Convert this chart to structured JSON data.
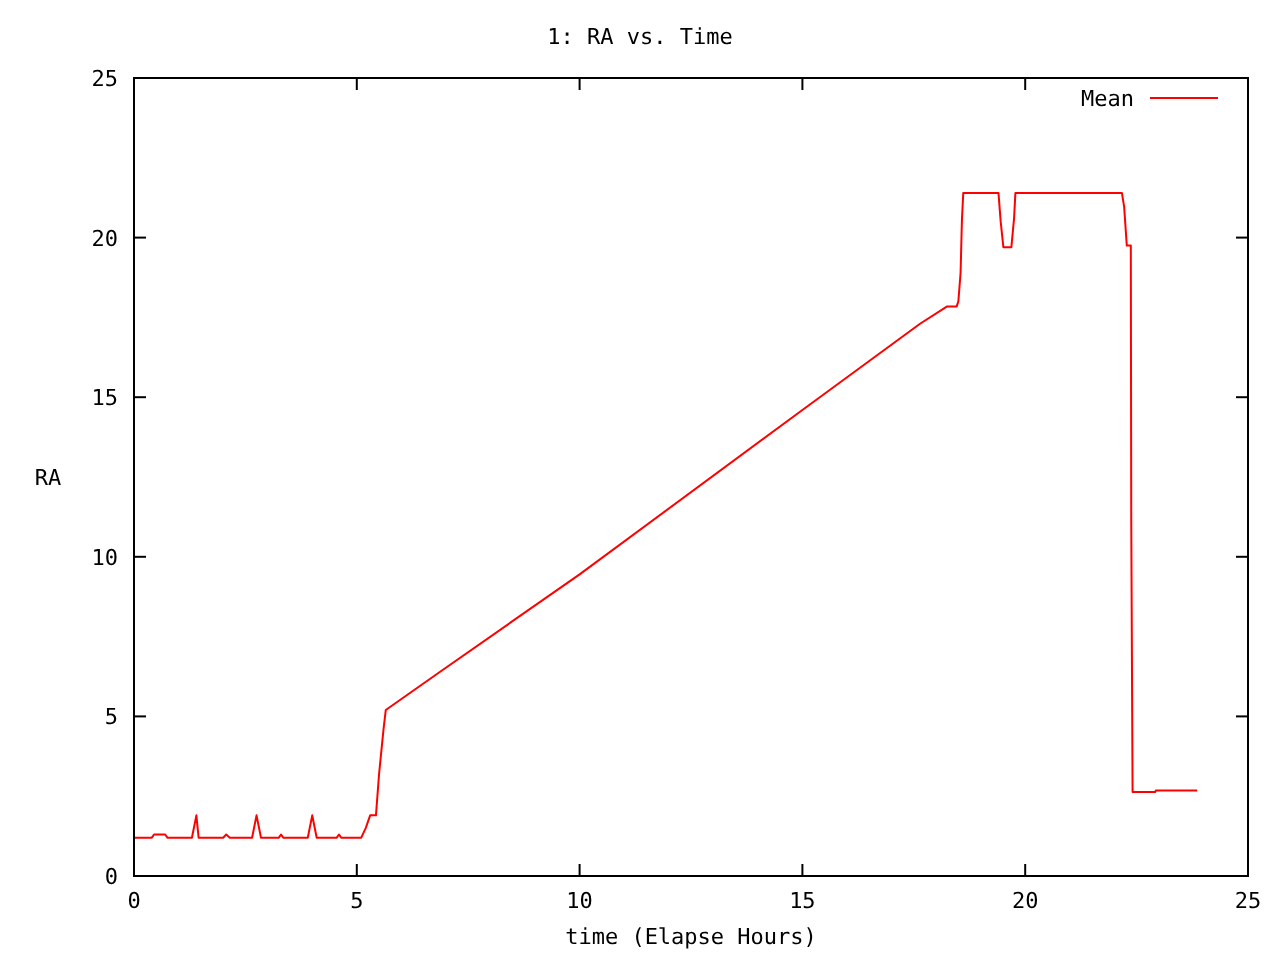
{
  "chart_data": {
    "type": "line",
    "title": "1: RA vs. Time",
    "xlabel": "time (Elapse Hours)",
    "ylabel": "RA",
    "xlim": [
      0,
      25
    ],
    "ylim": [
      0,
      25
    ],
    "xticks": [
      0,
      5,
      10,
      15,
      20,
      25
    ],
    "yticks": [
      0,
      5,
      10,
      15,
      20,
      25
    ],
    "grid": false,
    "legend": "top right",
    "series": [
      {
        "name": "Mean",
        "color": "#ff0000",
        "x": [
          0,
          0.4,
          0.45,
          0.7,
          0.75,
          1.3,
          1.4,
          1.45,
          1.55,
          2.0,
          2.07,
          2.15,
          2.65,
          2.75,
          2.85,
          3.25,
          3.3,
          3.35,
          3.9,
          4.0,
          4.1,
          4.55,
          4.6,
          4.65,
          5.1,
          5.2,
          5.3,
          5.43,
          5.5,
          5.6,
          5.65,
          6.87,
          10,
          15,
          17.64,
          18.24,
          18.46,
          18.5,
          18.55,
          18.58,
          18.61,
          19.4,
          19.45,
          19.51,
          19.69,
          19.75,
          19.78,
          22.17,
          22.22,
          22.28,
          22.37,
          22.38,
          22.41,
          22.92,
          22.93,
          23.86
        ],
        "values": [
          1.2,
          1.2,
          1.3,
          1.3,
          1.2,
          1.2,
          1.9,
          1.2,
          1.2,
          1.2,
          1.3,
          1.2,
          1.2,
          1.9,
          1.2,
          1.2,
          1.3,
          1.2,
          1.2,
          1.9,
          1.2,
          1.2,
          1.3,
          1.2,
          1.2,
          1.5,
          1.9,
          1.9,
          3.2,
          4.6,
          5.2,
          6.4,
          9.45,
          14.6,
          17.3,
          17.84,
          17.84,
          18.0,
          18.9,
          20.55,
          21.4,
          21.4,
          20.5,
          19.7,
          19.7,
          20.6,
          21.4,
          21.4,
          20.97,
          19.75,
          19.75,
          11.15,
          2.63,
          2.63,
          2.68,
          2.68
        ]
      }
    ]
  }
}
